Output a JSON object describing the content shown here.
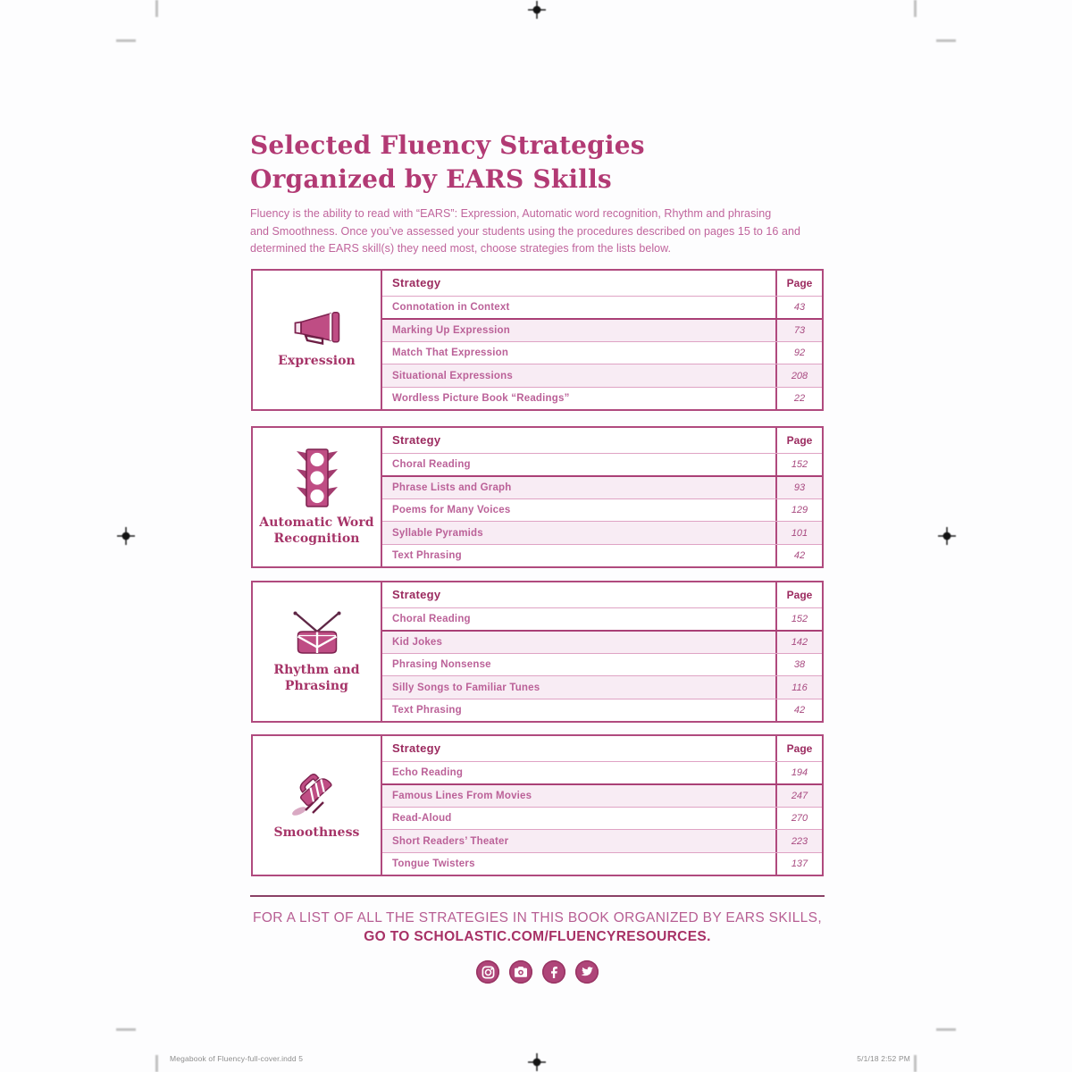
{
  "accent_color": "#b23a74",
  "title_lines": [
    "Selected Fluency Strategies",
    "Organized by EARS Skills"
  ],
  "intro_lines": [
    "Fluency is the ability to read with “EARS”: Expression, Automatic word recognition, Rhythm and phrasing",
    "and Smoothness. Once you’ve assessed your students using the procedures described on pages 15 to 16 and",
    "determined the EARS skill(s) they need most, choose strategies from the lists below."
  ],
  "table_header": {
    "strategy": "Strategy",
    "page": "Page"
  },
  "sections": [
    {
      "skill": "Expression",
      "label_lines": [
        "Expression"
      ],
      "icon": "megaphone-icon",
      "rows": [
        {
          "strategy": "Connotation in Context",
          "page": "43"
        },
        {
          "strategy": "Marking Up Expression",
          "page": "73"
        },
        {
          "strategy": "Match That Expression",
          "page": "92"
        },
        {
          "strategy": "Situational Expressions",
          "page": "208"
        },
        {
          "strategy": "Wordless Picture Book “Readings”",
          "page": "22"
        }
      ]
    },
    {
      "skill": "Automatic Word Recognition",
      "label_lines": [
        "Automatic Word",
        "Recognition"
      ],
      "icon": "traffic-light-icon",
      "rows": [
        {
          "strategy": "Choral Reading",
          "page": "152"
        },
        {
          "strategy": "Phrase Lists and Graph",
          "page": "93"
        },
        {
          "strategy": "Poems for Many Voices",
          "page": "129"
        },
        {
          "strategy": "Syllable Pyramids",
          "page": "101"
        },
        {
          "strategy": "Text Phrasing",
          "page": "42"
        }
      ]
    },
    {
      "skill": "Rhythm and Phrasing",
      "label_lines": [
        "Rhythm and",
        "Phrasing"
      ],
      "icon": "drum-icon",
      "rows": [
        {
          "strategy": "Choral Reading",
          "page": "152"
        },
        {
          "strategy": "Kid Jokes",
          "page": "142"
        },
        {
          "strategy": "Phrasing Nonsense",
          "page": "38"
        },
        {
          "strategy": "Silly Songs to Familiar Tunes",
          "page": "116"
        },
        {
          "strategy": "Text Phrasing",
          "page": "42"
        }
      ]
    },
    {
      "skill": "Smoothness",
      "label_lines": [
        "Smoothness"
      ],
      "icon": "iron-icon",
      "rows": [
        {
          "strategy": "Echo Reading",
          "page": "194"
        },
        {
          "strategy": "Famous Lines From Movies",
          "page": "247"
        },
        {
          "strategy": "Read-Aloud",
          "page": "270"
        },
        {
          "strategy": "Short Readers’ Theater",
          "page": "223"
        },
        {
          "strategy": "Tongue Twisters",
          "page": "137"
        }
      ]
    }
  ],
  "footer": {
    "line1": "FOR A LIST OF ALL THE STRATEGIES IN THIS BOOK ORGANIZED BY EARS SKILLS,",
    "line2": "GO TO SCHOLASTIC.COM/FLUENCYRESOURCES.",
    "social_icons": [
      "instagram-icon",
      "camera-icon",
      "facebook-icon",
      "twitter-icon"
    ]
  },
  "slug": {
    "left": "Megabook of Fluency-full-cover.indd   5",
    "right": "5/1/18   2:52 PM"
  }
}
